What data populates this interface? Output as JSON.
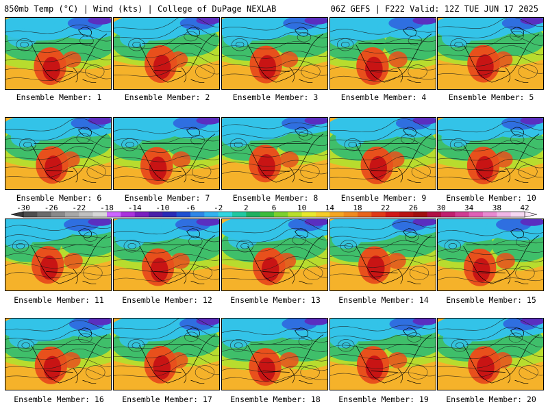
{
  "header": {
    "left_title": "850mb Temp (°C) | Wind (kts) | College of DuPage NEXLAB",
    "right_title": "06Z GEFS | F222 Valid: 12Z TUE JUN 17 2025"
  },
  "caption_prefix": "Ensemble Member: ",
  "members": [
    {
      "label": "Ensemble Member: 1"
    },
    {
      "label": "Ensemble Member: 2"
    },
    {
      "label": "Ensemble Member: 3"
    },
    {
      "label": "Ensemble Member: 4"
    },
    {
      "label": "Ensemble Member: 5"
    },
    {
      "label": "Ensemble Member: 6"
    },
    {
      "label": "Ensemble Member: 7"
    },
    {
      "label": "Ensemble Member: 8"
    },
    {
      "label": "Ensemble Member: 9"
    },
    {
      "label": "Ensemble Member: 10"
    },
    {
      "label": "Ensemble Member: 11"
    },
    {
      "label": "Ensemble Member: 12"
    },
    {
      "label": "Ensemble Member: 13"
    },
    {
      "label": "Ensemble Member: 14"
    },
    {
      "label": "Ensemble Member: 15"
    },
    {
      "label": "Ensemble Member: 16"
    },
    {
      "label": "Ensemble Member: 17"
    },
    {
      "label": "Ensemble Member: 18"
    },
    {
      "label": "Ensemble Member: 19"
    },
    {
      "label": "Ensemble Member: 20"
    }
  ],
  "colorbar": {
    "tick_labels": [
      "-30",
      "-26",
      "-22",
      "-18",
      "-14",
      "-10",
      "-6",
      "-2",
      "2",
      "6",
      "10",
      "14",
      "18",
      "22",
      "26",
      "30",
      "34",
      "38",
      "42"
    ],
    "colors": [
      "#4d4d4d",
      "#6b6b6b",
      "#8a8a8a",
      "#a8a8a8",
      "#c0c0c0",
      "#d8d8d8",
      "#cc66ff",
      "#aa33dd",
      "#7a1fbf",
      "#4b1fa8",
      "#2a2ab5",
      "#1f4fd0",
      "#2f86e6",
      "#33b3f0",
      "#33d6e0",
      "#22c8a0",
      "#1fb060",
      "#3cbc3c",
      "#7cd12e",
      "#b8e02a",
      "#e8e82e",
      "#f5cc2a",
      "#f5a623",
      "#f08a1f",
      "#e8641b",
      "#e03a17",
      "#d01818",
      "#b81414",
      "#a01010",
      "#b01045",
      "#c0206e",
      "#d03c92",
      "#e060b6",
      "#e88ad0",
      "#f0b6e6",
      "#f6d8f2"
    ]
  },
  "palette": {
    "cold_deep": "#5a2fc0",
    "cold": "#2f6fe0",
    "cool": "#33c3e8",
    "mild": "#3fbf6a",
    "warm": "#b8dc2e",
    "hot": "#f5b22a",
    "very_hot": "#e8501c",
    "extreme": "#c81414"
  }
}
